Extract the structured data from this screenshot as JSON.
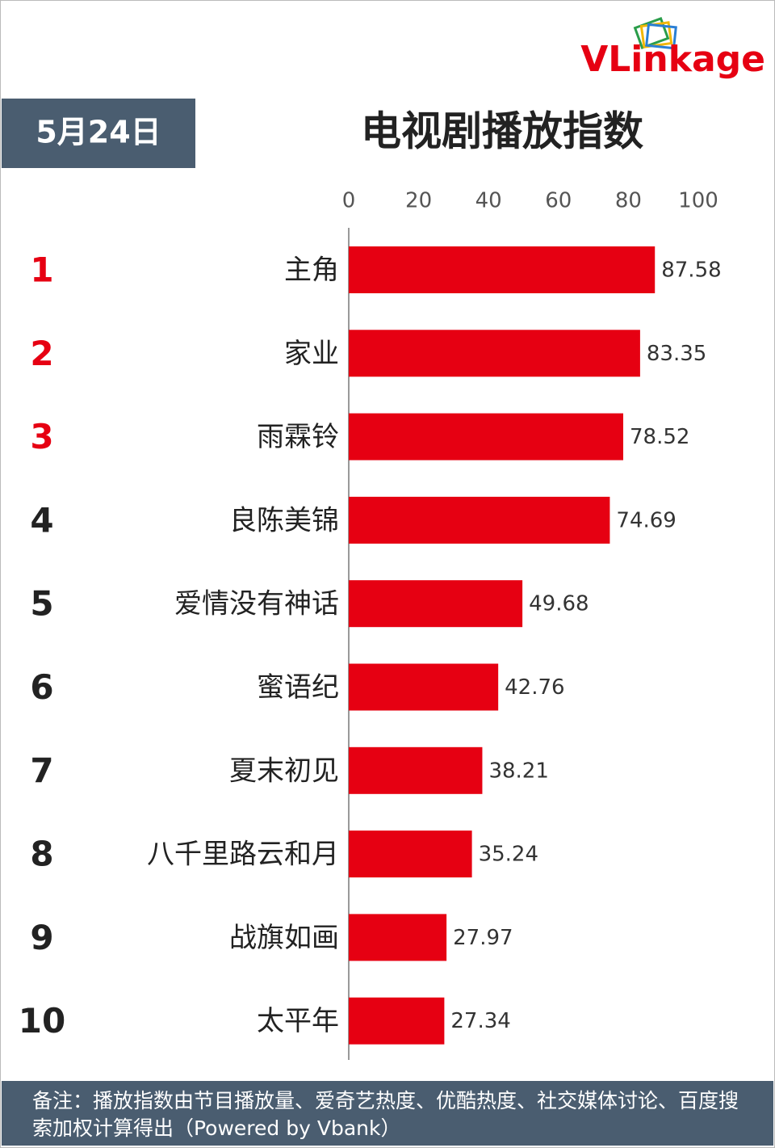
{
  "chart_data": {
    "type": "bar",
    "orientation": "horizontal",
    "logo": "VLinkage",
    "date": "5月24日",
    "title": "电视剧播放指数",
    "ranks": [
      "1",
      "2",
      "3",
      "4",
      "5",
      "6",
      "7",
      "8",
      "9",
      "10"
    ],
    "rank_colors": [
      "#e60012",
      "#e60012",
      "#e60012",
      "#222222",
      "#222222",
      "#222222",
      "#222222",
      "#222222",
      "#222222",
      "#222222"
    ],
    "categories": [
      "主角",
      "家业",
      "雨霖铃",
      "良陈美锦",
      "爱情没有神话",
      "蜜语纪",
      "夏末初见",
      "八千里路云和月",
      "战旗如画",
      "太平年"
    ],
    "values": [
      87.58,
      83.35,
      78.52,
      74.69,
      49.68,
      42.76,
      38.21,
      35.24,
      27.97,
      27.34
    ],
    "color": "#e60012",
    "xlim": [
      0,
      100
    ],
    "xticks": [
      0,
      20,
      40,
      60,
      80,
      100
    ],
    "note": "备注：播放指数由节目播放量、爱奇艺热度、优酷热度、社交媒体讨论、百度搜索加权计算得出（Powered by Vbank）"
  }
}
